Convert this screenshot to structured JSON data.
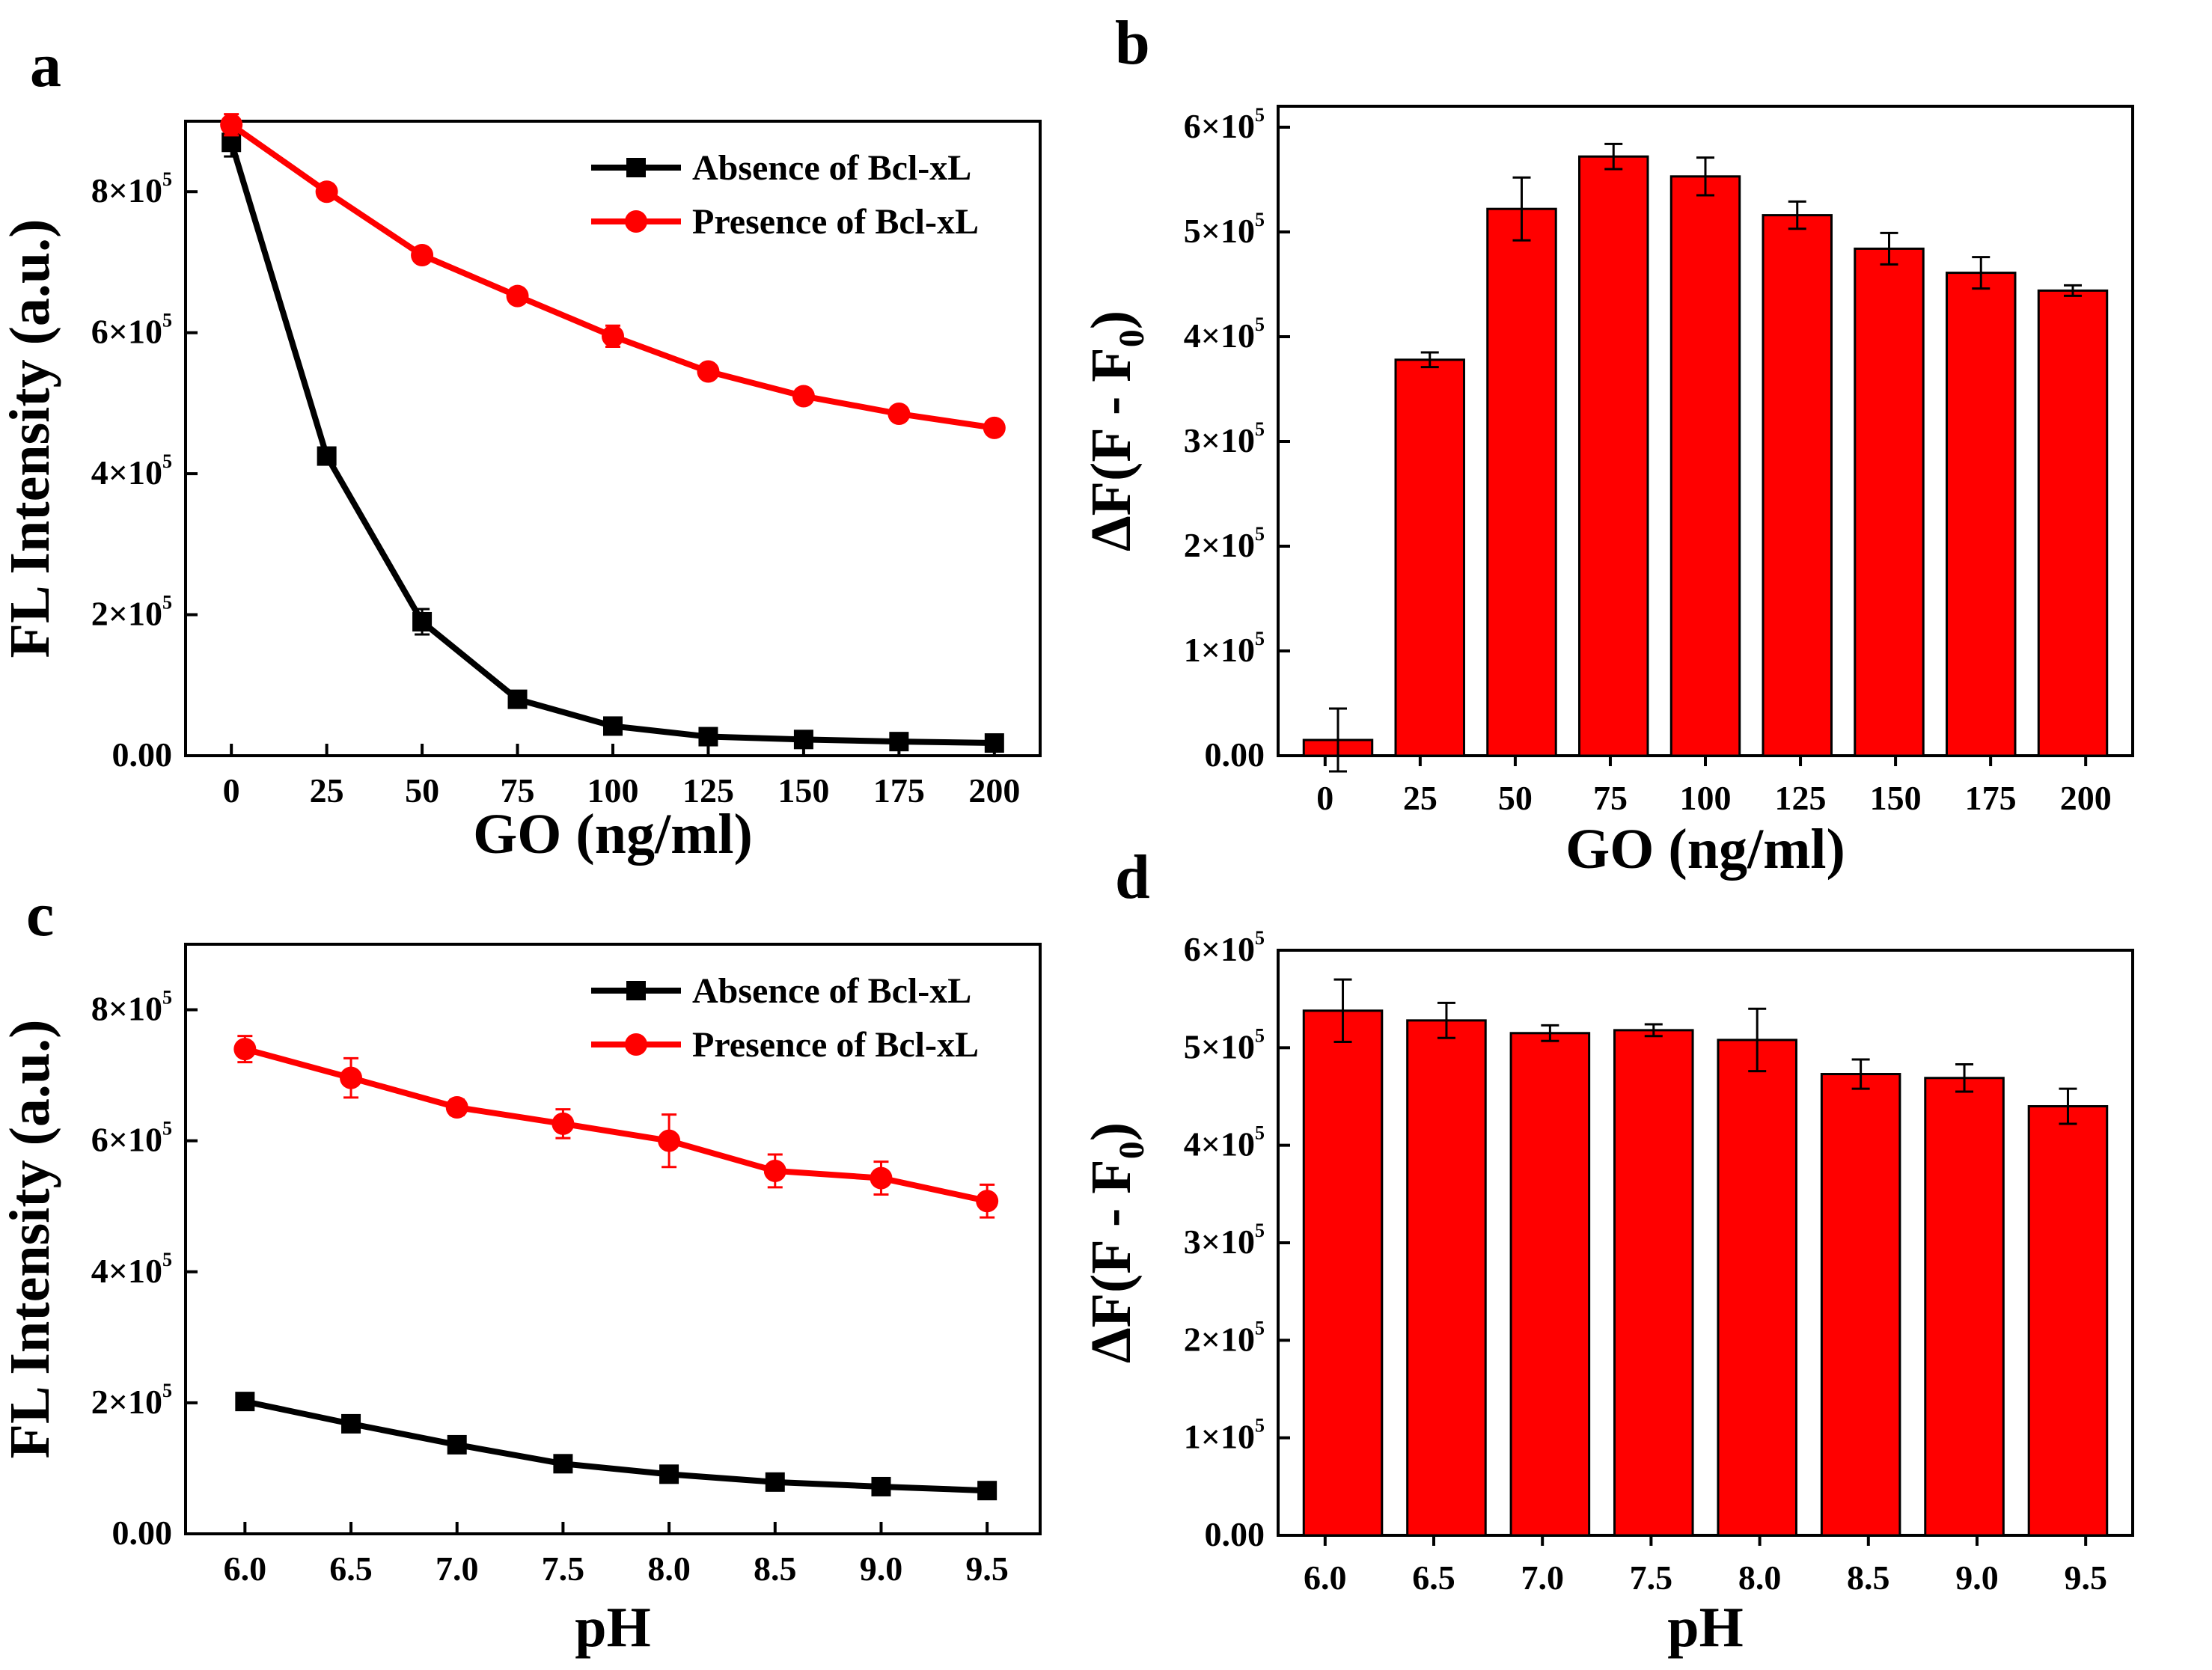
{
  "figure": {
    "panels": [
      "a",
      "b",
      "c",
      "d"
    ]
  },
  "chart_data": [
    {
      "panel": "a",
      "type": "line",
      "xlabel": "GO (ng/ml)",
      "ylabel": "FL Intensity (a.u.)",
      "x": [
        0,
        25,
        50,
        75,
        100,
        125,
        150,
        175,
        200
      ],
      "xlim": [
        -12,
        212
      ],
      "ylim": [
        0,
        900000
      ],
      "xticks": [
        "0",
        "25",
        "50",
        "75",
        "100",
        "125",
        "150",
        "175",
        "200"
      ],
      "yticks": [
        {
          "value": 0,
          "mantissa": "0.00",
          "exp": ""
        },
        {
          "value": 200000,
          "mantissa": "2×10",
          "exp": "5"
        },
        {
          "value": 400000,
          "mantissa": "4×10",
          "exp": "5"
        },
        {
          "value": 600000,
          "mantissa": "6×10",
          "exp": "5"
        },
        {
          "value": 800000,
          "mantissa": "8×10",
          "exp": "5"
        }
      ],
      "legend_position": "top-right",
      "series": [
        {
          "name": "Absence of Bcl-xL",
          "color": "#000000",
          "marker": "square",
          "values": [
            870000,
            425000,
            190000,
            80000,
            42000,
            27000,
            23000,
            20000,
            18000
          ],
          "errors": [
            20000,
            8000,
            18000,
            6000,
            5000,
            4000,
            3000,
            3000,
            3000
          ]
        },
        {
          "name": "Presence of Bcl-xL",
          "color": "#ff0000",
          "marker": "circle",
          "values": [
            895000,
            800000,
            710000,
            652000,
            595000,
            545000,
            510000,
            485000,
            465000
          ],
          "errors": [
            15000,
            8000,
            10000,
            8000,
            15000,
            8000,
            8000,
            8000,
            5000
          ]
        }
      ]
    },
    {
      "panel": "b",
      "type": "bar",
      "xlabel": "GO (ng/ml)",
      "ylabel": "ΔF(F - F0)",
      "categories": [
        "0",
        "25",
        "50",
        "75",
        "100",
        "125",
        "150",
        "175",
        "200"
      ],
      "bar_categories": [
        "0",
        "25",
        "50",
        "75",
        "100",
        "125",
        "150",
        "175"
      ],
      "values": [
        15000,
        378000,
        522000,
        572000,
        553000,
        516000,
        484000,
        461000,
        444000
      ],
      "errors": [
        30000,
        7000,
        30000,
        12000,
        18000,
        13000,
        15000,
        15000,
        5000
      ],
      "bar_color": "#ff0000",
      "ylim": [
        0,
        620000
      ],
      "yticks": [
        {
          "value": 0,
          "mantissa": "0.00",
          "exp": ""
        },
        {
          "value": 100000,
          "mantissa": "1×10",
          "exp": "5"
        },
        {
          "value": 200000,
          "mantissa": "2×10",
          "exp": "5"
        },
        {
          "value": 300000,
          "mantissa": "3×10",
          "exp": "5"
        },
        {
          "value": 400000,
          "mantissa": "4×10",
          "exp": "5"
        },
        {
          "value": 500000,
          "mantissa": "5×10",
          "exp": "5"
        },
        {
          "value": 600000,
          "mantissa": "6×10",
          "exp": "5"
        }
      ]
    },
    {
      "panel": "c",
      "type": "line",
      "xlabel": "pH",
      "ylabel": "FL Intensity (a.u.)",
      "x": [
        6.0,
        6.5,
        7.0,
        7.5,
        8.0,
        8.5,
        9.0,
        9.5
      ],
      "xlim": [
        5.72,
        9.75
      ],
      "ylim": [
        0,
        900000
      ],
      "xticks": [
        "6.0",
        "6.5",
        "7.0",
        "7.5",
        "8.0",
        "8.5",
        "9.0",
        "9.5"
      ],
      "yticks": [
        {
          "value": 0,
          "mantissa": "0.00",
          "exp": ""
        },
        {
          "value": 200000,
          "mantissa": "2×10",
          "exp": "5"
        },
        {
          "value": 400000,
          "mantissa": "4×10",
          "exp": "5"
        },
        {
          "value": 600000,
          "mantissa": "6×10",
          "exp": "5"
        },
        {
          "value": 800000,
          "mantissa": "8×10",
          "exp": "5"
        }
      ],
      "legend_position": "top-right",
      "series": [
        {
          "name": "Absence of Bcl-xL",
          "color": "#000000",
          "marker": "square",
          "values": [
            202000,
            168000,
            136000,
            107000,
            91000,
            79000,
            72000,
            66000
          ],
          "errors": [
            6000,
            8000,
            10000,
            10000,
            5000,
            5000,
            5000,
            4000
          ]
        },
        {
          "name": "Presence of Bcl-xL",
          "color": "#ff0000",
          "marker": "circle",
          "values": [
            740000,
            696000,
            651000,
            626000,
            600000,
            554000,
            543000,
            508000
          ],
          "errors": [
            20000,
            30000,
            12000,
            22000,
            40000,
            25000,
            25000,
            25000
          ]
        }
      ]
    },
    {
      "panel": "d",
      "type": "bar",
      "xlabel": "pH",
      "ylabel": "ΔF(F - F0)",
      "categories": [
        "6.0",
        "6.5",
        "7.0",
        "7.5",
        "8.0",
        "8.5",
        "9.0",
        "9.5"
      ],
      "bar_categories": [
        "6.0",
        "6.5",
        "7.0",
        "7.5",
        "8.0",
        "8.5",
        "9.0"
      ],
      "values": [
        538000,
        528000,
        515000,
        518000,
        508000,
        473000,
        469000,
        440000
      ],
      "errors": [
        32000,
        18000,
        8000,
        6000,
        32000,
        15000,
        14000,
        18000
      ],
      "bar_color": "#ff0000",
      "ylim": [
        0,
        600000
      ],
      "yticks": [
        {
          "value": 0,
          "mantissa": "0.00",
          "exp": ""
        },
        {
          "value": 100000,
          "mantissa": "1×10",
          "exp": "5"
        },
        {
          "value": 200000,
          "mantissa": "2×10",
          "exp": "5"
        },
        {
          "value": 300000,
          "mantissa": "3×10",
          "exp": "5"
        },
        {
          "value": 400000,
          "mantissa": "4×10",
          "exp": "5"
        },
        {
          "value": 500000,
          "mantissa": "5×10",
          "exp": "5"
        },
        {
          "value": 600000,
          "mantissa": "6×10",
          "exp": "5"
        }
      ]
    }
  ]
}
